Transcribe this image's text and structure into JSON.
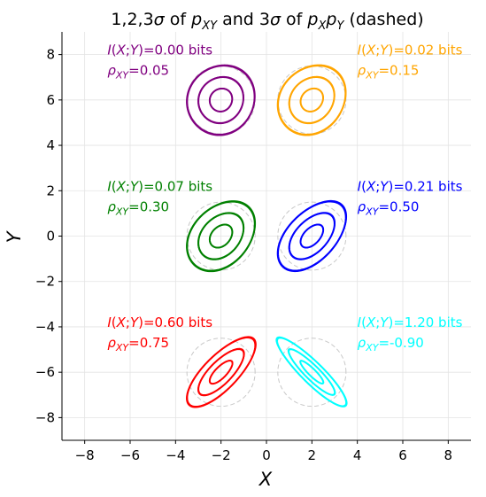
{
  "chart_data": {
    "type": "contour",
    "title": {
      "prefix": "1,2,3",
      "sigma": "σ",
      "mid": " of ",
      "p1": "p",
      "p1_sub": "XY",
      "and": " and 3",
      "sigma2": "σ",
      "of2": " of ",
      "p2a": "p",
      "p2a_sub": "X",
      "p2b": "p",
      "p2b_sub": "Y",
      "suffix": " (dashed)"
    },
    "xlabel": "X",
    "ylabel": "Y",
    "xlim": [
      -9,
      9
    ],
    "ylim": [
      -9,
      9
    ],
    "xticks": [
      -8,
      -6,
      -4,
      -2,
      0,
      2,
      4,
      6,
      8
    ],
    "yticks": [
      -8,
      -6,
      -4,
      -2,
      0,
      2,
      4,
      6,
      8
    ],
    "xtick_labels": [
      "−8",
      "−6",
      "−4",
      "−2",
      "0",
      "2",
      "4",
      "6",
      "8"
    ],
    "ytick_labels": [
      "−8",
      "−6",
      "−4",
      "−2",
      "0",
      "2",
      "4",
      "6",
      "8"
    ],
    "grid": true,
    "sigma_x": 0.5,
    "sigma_y": 0.5,
    "contour_levels": [
      1,
      2,
      3
    ],
    "series": [
      {
        "center": [
          -2,
          6
        ],
        "rho": 0.05,
        "color": "#800080",
        "mi_label": "I(X;Y)=0.00 bits",
        "rho_label": "=0.05",
        "ann_pos": [
          -7,
          8
        ]
      },
      {
        "center": [
          2,
          6
        ],
        "rho": 0.15,
        "color": "#ffa500",
        "mi_label": "I(X;Y)=0.02 bits",
        "rho_label": "=0.15",
        "ann_pos": [
          4,
          8
        ]
      },
      {
        "center": [
          -2,
          0
        ],
        "rho": 0.3,
        "color": "#008000",
        "mi_label": "I(X;Y)=0.07 bits",
        "rho_label": "=0.30",
        "ann_pos": [
          -7,
          2
        ]
      },
      {
        "center": [
          2,
          0
        ],
        "rho": 0.5,
        "color": "#0000ff",
        "mi_label": "I(X;Y)=0.21 bits",
        "rho_label": "=0.50",
        "ann_pos": [
          4,
          2
        ]
      },
      {
        "center": [
          -2,
          -6
        ],
        "rho": 0.75,
        "color": "#ff0000",
        "mi_label": "I(X;Y)=0.60 bits",
        "rho_label": "=0.75",
        "ann_pos": [
          -7,
          -4
        ]
      },
      {
        "center": [
          2,
          -6
        ],
        "rho": -0.9,
        "color": "#00ffff",
        "mi_label": "I(X;Y)=1.20 bits",
        "rho_label": "=-0.90",
        "ann_pos": [
          4,
          -4
        ]
      }
    ],
    "rho_symbol": "ρ",
    "rho_sub": "XY"
  }
}
